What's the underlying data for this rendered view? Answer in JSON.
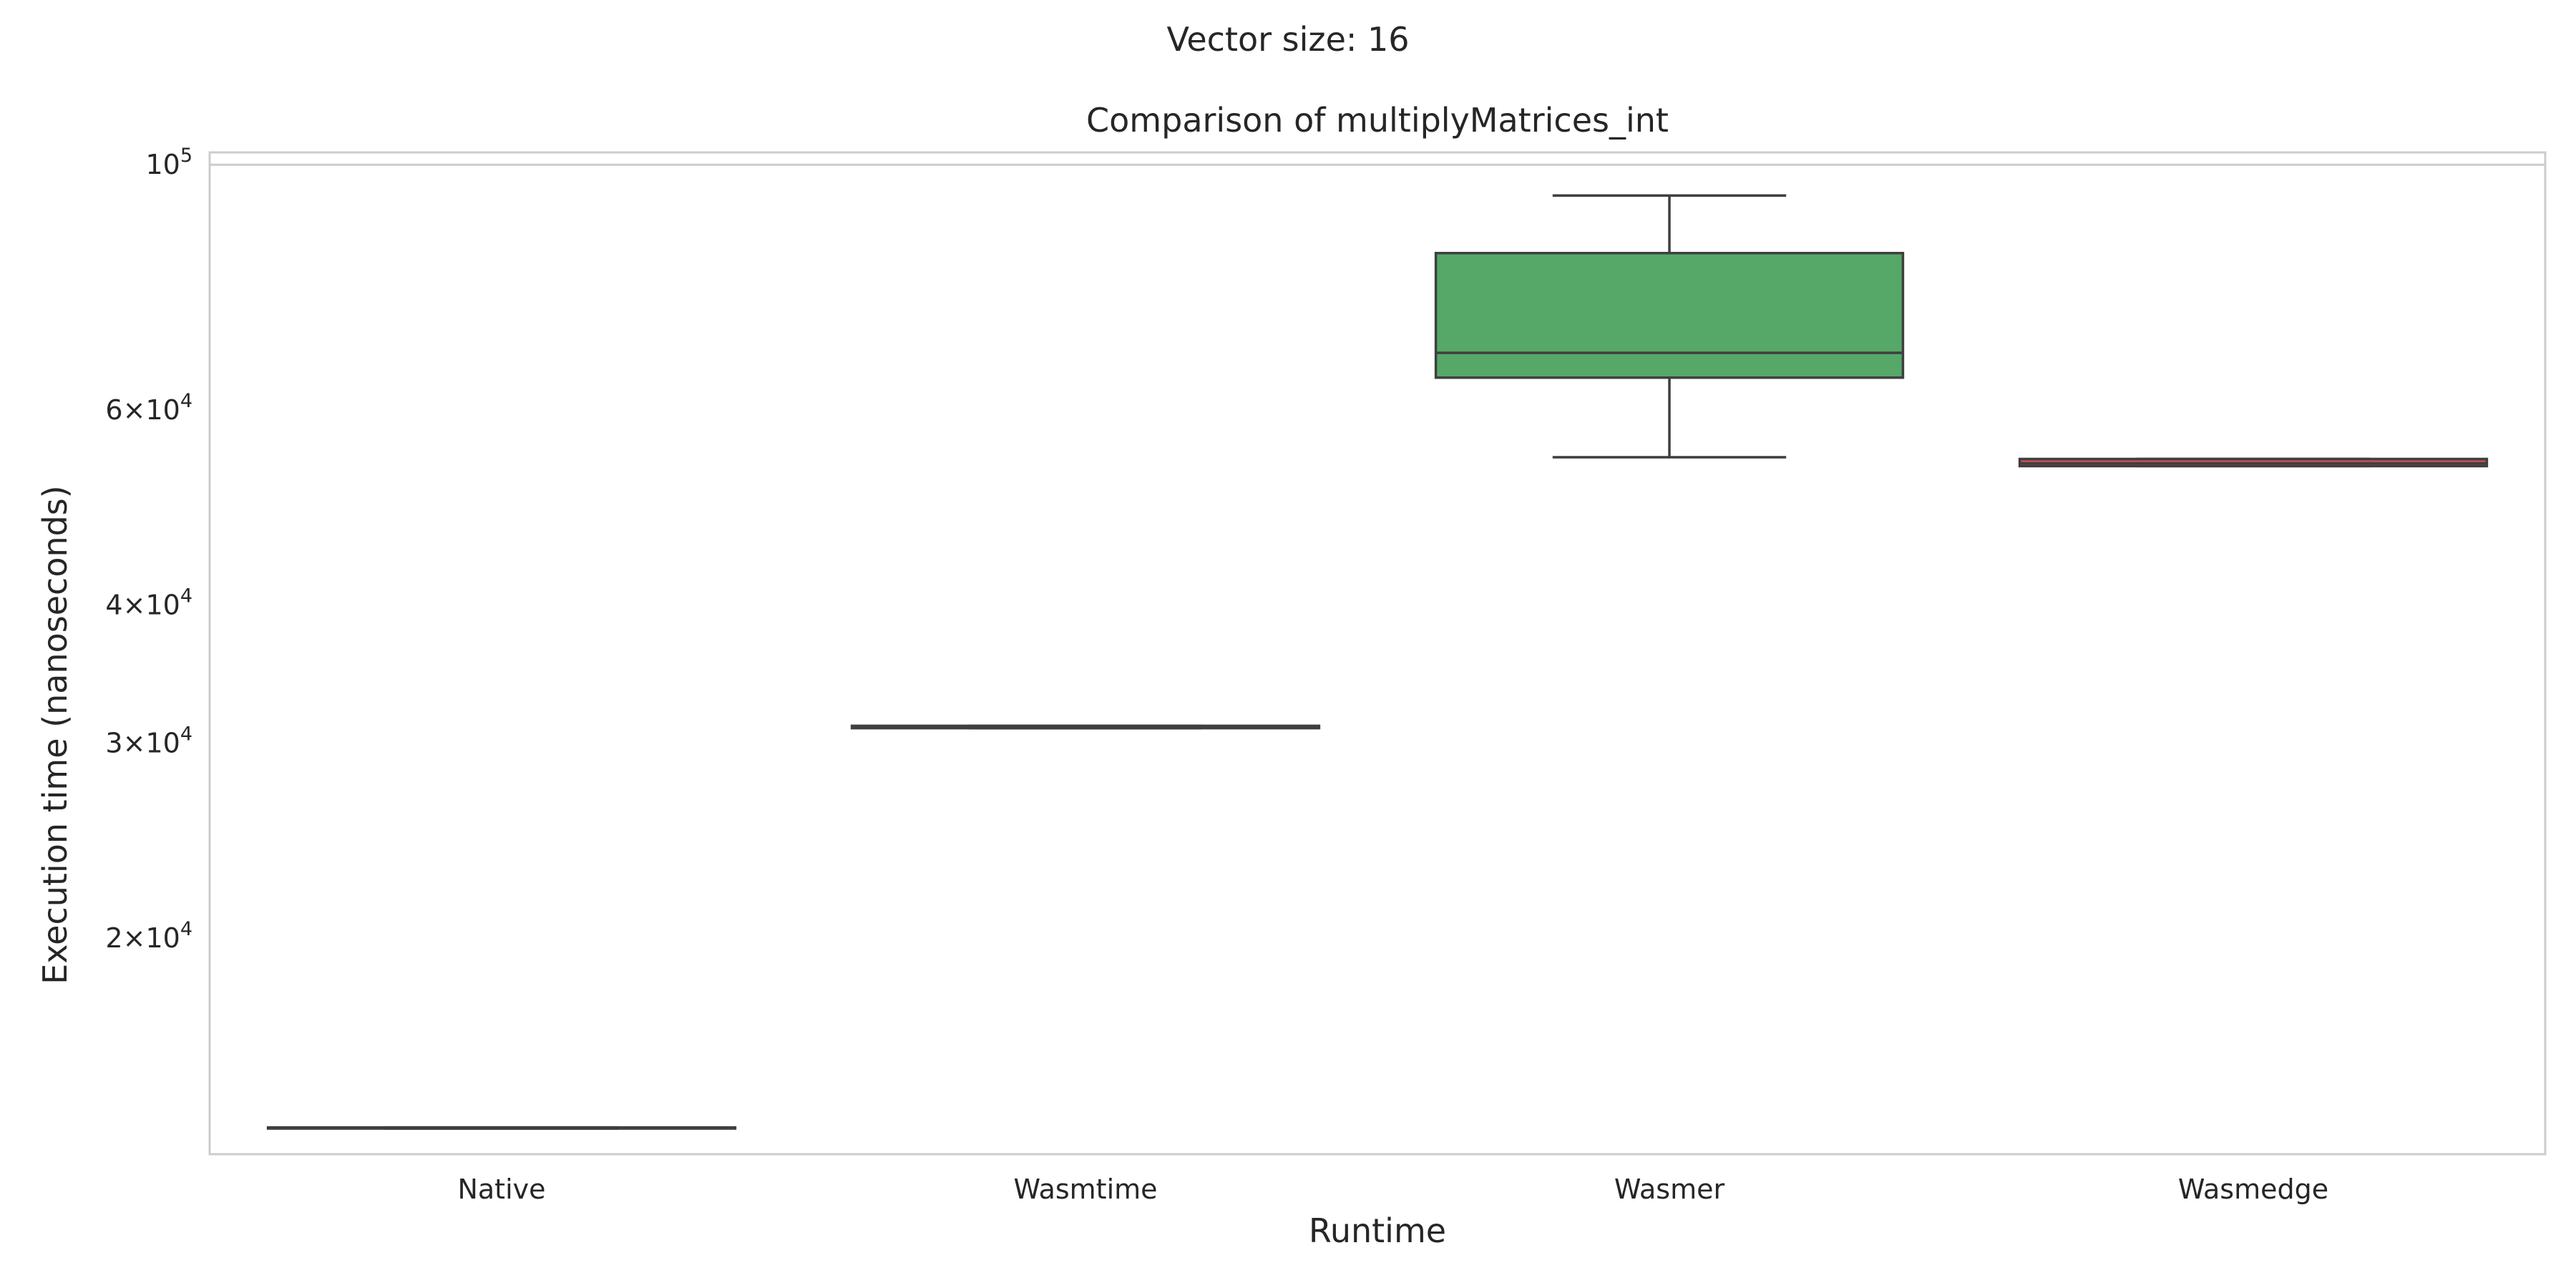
{
  "suptitle": "Vector size: 16",
  "chart_data": {
    "type": "box",
    "title": "Comparison of multiplyMatrices_int",
    "xlabel": "Runtime",
    "ylabel": "Execution time (nanoseconds)",
    "yscale": "log",
    "ylim": [
      12750,
      102600
    ],
    "grid": "y-major",
    "categories": [
      "Native",
      "Wasmtime",
      "Wasmer",
      "Wasmedge"
    ],
    "yticks": [
      {
        "value": 20000,
        "mant": "2",
        "base": "10",
        "exp": "4",
        "major": false
      },
      {
        "value": 30000,
        "mant": "3",
        "base": "10",
        "exp": "4",
        "major": false
      },
      {
        "value": 40000,
        "mant": "4",
        "base": "10",
        "exp": "4",
        "major": false
      },
      {
        "value": 60000,
        "mant": "6",
        "base": "10",
        "exp": "4",
        "major": false
      },
      {
        "value": 100000,
        "mant": "",
        "base": "10",
        "exp": "5",
        "major": true
      }
    ],
    "boxes": [
      {
        "name": "Native",
        "color": "#4c72b0",
        "whislo": 13450,
        "q1": 13450,
        "median": 13460,
        "q3": 13480,
        "whishi": 13480
      },
      {
        "name": "Wasmtime",
        "color": "#dd8452",
        "whislo": 30950,
        "q1": 30950,
        "median": 31000,
        "q3": 31100,
        "whishi": 31100
      },
      {
        "name": "Wasmer",
        "color": "#55a868",
        "whislo": 54400,
        "q1": 64200,
        "median": 67600,
        "q3": 83200,
        "whishi": 93800
      },
      {
        "name": "Wasmedge",
        "color": "#c44e52",
        "whislo": 53400,
        "q1": 53400,
        "median": 53700,
        "q3": 54200,
        "whishi": 54200
      }
    ]
  }
}
